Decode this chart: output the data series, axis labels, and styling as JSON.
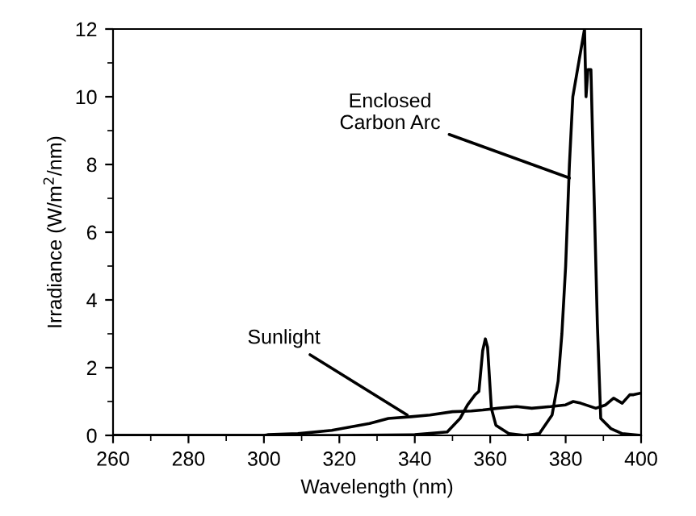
{
  "chart_data": {
    "type": "line",
    "xlabel": "Wavelength (nm)",
    "ylabel": "Irradiance (W/m$^{2}$/nm)",
    "xlim": [
      260,
      400
    ],
    "ylim": [
      0,
      12
    ],
    "xticks": [
      260,
      280,
      300,
      320,
      340,
      360,
      380,
      400
    ],
    "yticks": [
      0,
      2,
      4,
      6,
      8,
      10,
      12
    ],
    "grid": false,
    "legend": false,
    "marker": "none",
    "line_style": "solid",
    "series": [
      {
        "color": "#000000",
        "x": [
          260,
          300,
          301,
          309,
          318,
          328,
          333,
          339,
          344,
          350,
          355,
          358,
          362,
          367,
          371,
          376,
          380,
          382,
          384,
          388,
          390.6,
          392.7,
          395,
          397,
          398,
          400
        ],
        "values": [
          0,
          0,
          0.02,
          0.05,
          0.15,
          0.35,
          0.5,
          0.55,
          0.6,
          0.7,
          0.72,
          0.75,
          0.8,
          0.85,
          0.8,
          0.85,
          0.9,
          1.0,
          0.95,
          0.8,
          0.9,
          1.1,
          0.95,
          1.2,
          1.2,
          1.25
        ]
      },
      {
        "color": "#000000",
        "x": [
          260,
          320,
          340,
          348.6,
          352,
          354,
          356,
          357,
          358,
          358.7,
          359.3,
          360.3,
          361.5,
          365,
          369,
          373,
          376.4,
          378,
          379,
          380,
          381,
          381.9,
          385,
          385.4,
          385.9,
          386.7,
          387.1,
          388.4,
          389.3,
          392,
          395,
          400
        ],
        "values": [
          0,
          0,
          0.02,
          0.1,
          0.5,
          0.9,
          1.2,
          1.3,
          2.5,
          2.85,
          2.6,
          0.8,
          0.3,
          0.05,
          0,
          0.05,
          0.6,
          1.6,
          3,
          5,
          8,
          10,
          12,
          10,
          10.8,
          10.8,
          9,
          3.3,
          0.5,
          0.2,
          0.05,
          0
        ]
      }
    ],
    "annotations": [
      {
        "text": "Sunlight",
        "x": 338,
        "y": 0.6
      },
      {
        "text": "Enclosed\nCarbon Arc",
        "x": 381,
        "y": 7.6
      }
    ]
  }
}
